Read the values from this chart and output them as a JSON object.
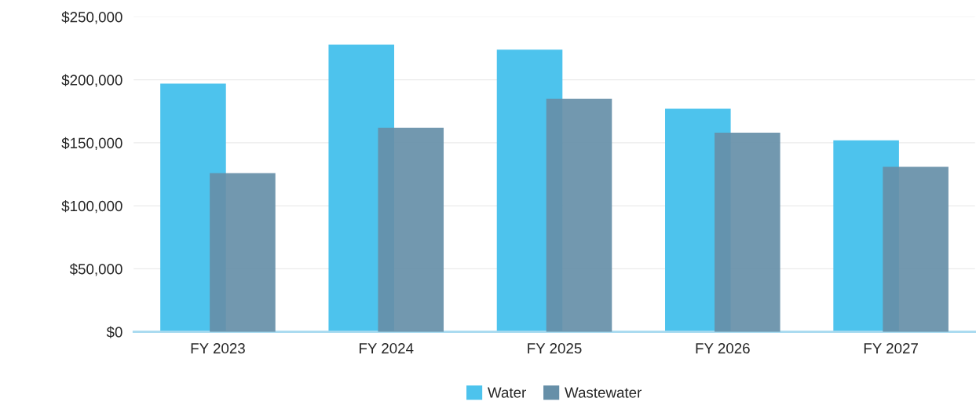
{
  "chart_data": {
    "type": "bar",
    "categories": [
      "FY 2023",
      "FY 2024",
      "FY 2025",
      "FY 2026",
      "FY 2027"
    ],
    "series": [
      {
        "name": "Water",
        "color": "#4dc3ed",
        "values": [
          197000,
          228000,
          224000,
          177000,
          152000
        ]
      },
      {
        "name": "Wastewater",
        "color": "#668fa8",
        "values": [
          126000,
          162000,
          185000,
          158000,
          131000
        ]
      }
    ],
    "ylim": [
      0,
      250000
    ],
    "yticks": [
      {
        "value": 0,
        "label": "$0"
      },
      {
        "value": 50000,
        "label": "$50,000"
      },
      {
        "value": 100000,
        "label": "$100,000"
      },
      {
        "value": 150000,
        "label": "$150,000"
      },
      {
        "value": 200000,
        "label": "$200,000"
      },
      {
        "value": 250000,
        "label": "$250,000"
      }
    ],
    "grid": "y",
    "legend": "bottom"
  }
}
